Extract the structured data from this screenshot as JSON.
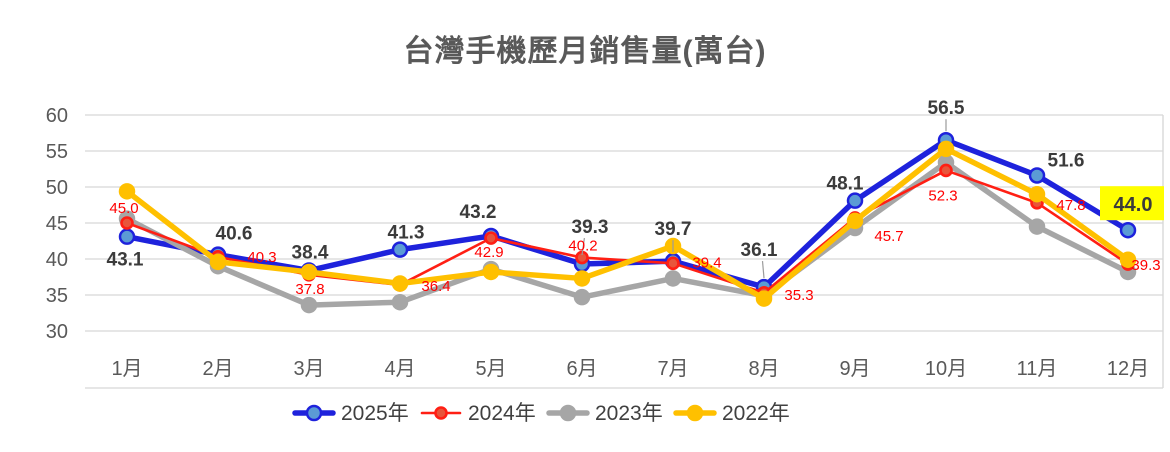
{
  "title": "台灣手機歷月銷售量(萬台)",
  "chart_data": {
    "type": "line",
    "categories": [
      "1月",
      "2月",
      "3月",
      "4月",
      "5月",
      "6月",
      "7月",
      "8月",
      "9月",
      "10月",
      "11月",
      "12月"
    ],
    "ylim": [
      30,
      60
    ],
    "yticks": [
      30,
      35,
      40,
      45,
      50,
      55,
      60
    ],
    "grid": true,
    "legend_position": "bottom",
    "series": [
      {
        "name": "2025年",
        "color": "#1E22DC",
        "marker_fill": "#5B9BD5",
        "line_width": 5.5,
        "values": [
          43.1,
          40.6,
          38.4,
          41.3,
          43.2,
          39.3,
          39.7,
          36.1,
          48.1,
          56.5,
          51.6,
          44.0
        ],
        "show_labels": true,
        "label_color": "#3B3B3B"
      },
      {
        "name": "2024年",
        "color": "#FF1F14",
        "marker_fill": "#E8553B",
        "line_width": 2.6,
        "values": [
          45.0,
          40.3,
          37.8,
          36.4,
          42.9,
          40.2,
          39.4,
          35.3,
          45.7,
          52.3,
          47.8,
          39.3
        ],
        "show_labels": true,
        "label_color": "#FF0000"
      },
      {
        "name": "2023年",
        "color": "#A6A6A6",
        "marker_fill": "#A6A6A6",
        "line_width": 5.5,
        "values": [
          45.6,
          39.0,
          33.6,
          34.0,
          38.6,
          34.7,
          37.3,
          34.9,
          44.3,
          53.4,
          44.5,
          38.2
        ],
        "show_labels": false,
        "label_color": "#A6A6A6"
      },
      {
        "name": "2022年",
        "color": "#FFC000",
        "marker_fill": "#FFC000",
        "line_width": 5.5,
        "values": [
          49.4,
          39.6,
          38.2,
          36.6,
          38.2,
          37.3,
          41.8,
          34.5,
          45.3,
          55.3,
          49.0,
          39.9
        ],
        "show_labels": false,
        "label_color": "#FFC000"
      }
    ],
    "draw_order": [
      0,
      2,
      1,
      3
    ],
    "label_offsets": {
      "2025年": [
        [
          -2,
          29
        ],
        [
          16,
          -15
        ],
        [
          1,
          -12
        ],
        [
          6,
          -11
        ],
        [
          -13,
          -18
        ],
        [
          8,
          -31
        ],
        [
          0,
          -26
        ],
        [
          -5,
          -31
        ],
        [
          -10,
          -11
        ],
        [
          0,
          -26
        ],
        [
          29,
          -9
        ],
        [
          5,
          -19
        ]
      ],
      "2024年": [
        [
          -3,
          -10
        ],
        [
          44,
          5
        ],
        [
          1,
          19
        ],
        [
          36,
          6
        ],
        [
          -2,
          19
        ],
        [
          1,
          -7
        ],
        [
          34,
          4
        ],
        [
          35,
          7
        ],
        [
          34,
          23
        ],
        [
          -3,
          30
        ],
        [
          34,
          7
        ],
        [
          18,
          6
        ]
      ]
    },
    "leader_lines": [
      {
        "series": 0,
        "index": 5
      },
      {
        "series": 0,
        "index": 6
      },
      {
        "series": 0,
        "index": 7
      },
      {
        "series": 0,
        "index": 9
      }
    ],
    "highlight": {
      "series": 0,
      "index": 11,
      "label": "44.0",
      "background": "#FFFF00",
      "text_color": "#3B3B3B"
    }
  },
  "colors": {
    "title": "#595959",
    "axis_text": "#595959",
    "gridline": "#D6D6D6",
    "legend_text": "#404040",
    "leader": "#9B9B9B"
  }
}
